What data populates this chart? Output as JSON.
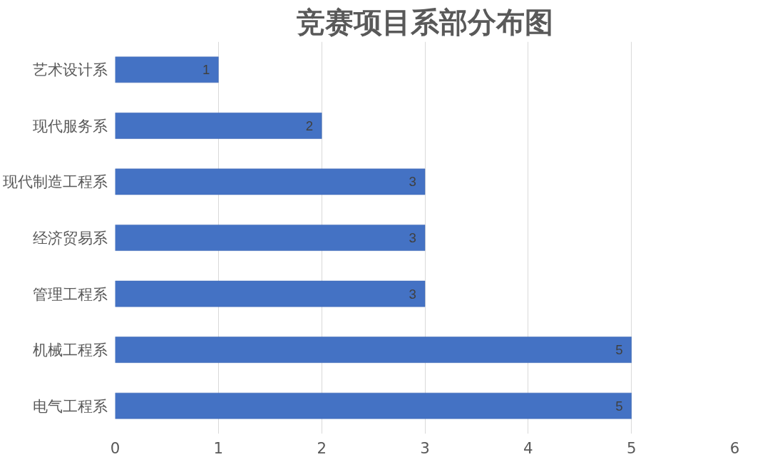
{
  "chart_data": {
    "type": "bar",
    "orientation": "horizontal",
    "title": "竞赛项目系部分布图",
    "categories": [
      "艺术设计系",
      "现代服务系",
      "现代制造工程系",
      "经济贸易系",
      "管理工程系",
      "机械工程系",
      "电气工程系"
    ],
    "values": [
      1,
      2,
      3,
      3,
      3,
      5,
      5
    ],
    "color": "#4472c4",
    "xlim": [
      0,
      6
    ],
    "xticks": [
      0,
      1,
      2,
      3,
      4,
      5,
      6
    ],
    "grid": "x",
    "data_labels": true
  }
}
